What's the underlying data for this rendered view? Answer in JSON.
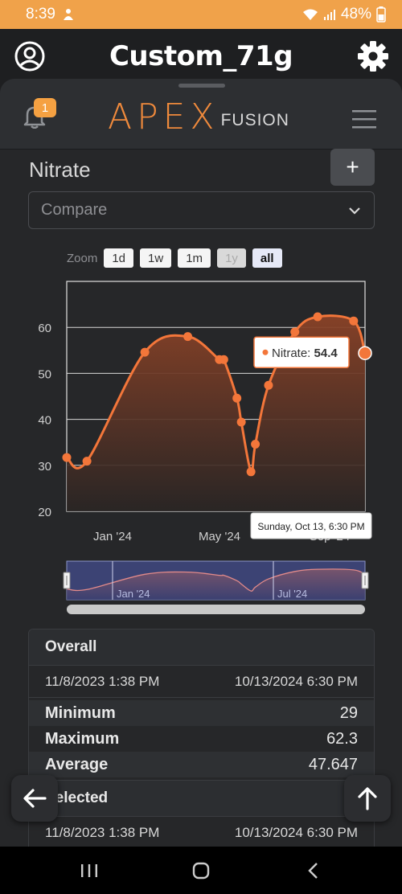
{
  "status_bar": {
    "time": "8:39",
    "battery": "48%"
  },
  "header": {
    "title": "Custom_71g"
  },
  "apex": {
    "notification_count": "1",
    "logo_main": "APEX",
    "logo_sub": "FUSION"
  },
  "parameter": {
    "title": "Nitrate",
    "add_label": "+"
  },
  "compare": {
    "placeholder": "Compare"
  },
  "zoom": {
    "label": "Zoom",
    "options": [
      {
        "label": "1d",
        "state": "normal"
      },
      {
        "label": "1w",
        "state": "normal"
      },
      {
        "label": "1m",
        "state": "normal"
      },
      {
        "label": "1y",
        "state": "disabled"
      },
      {
        "label": "all",
        "state": "active"
      }
    ]
  },
  "chart_data": {
    "type": "area",
    "series": [
      {
        "name": "Nitrate",
        "x": [
          "2023-11-08",
          "2023-12-01",
          "2024-02-05",
          "2024-03-25",
          "2024-04-30",
          "2024-05-05",
          "2024-05-20",
          "2024-05-25",
          "2024-06-05",
          "2024-06-10",
          "2024-06-25",
          "2024-07-25",
          "2024-08-20",
          "2024-09-30",
          "2024-10-13"
        ],
        "values": [
          31.7,
          30.9,
          54.6,
          58.0,
          53.0,
          53.0,
          44.6,
          39.4,
          28.6,
          34.6,
          47.4,
          59.0,
          62.3,
          61.4,
          54.4
        ],
        "color": "#f3763a"
      }
    ],
    "y_ticks": [
      "20",
      "30",
      "40",
      "50",
      "60"
    ],
    "ylim": [
      20,
      70
    ],
    "x_ticks": [
      "Jan '24",
      "May '24",
      "Sep '24"
    ],
    "grid": true,
    "tooltip": {
      "series_label": "Nitrate:",
      "value": "54.4",
      "date": "Sunday, Oct 13, 6:30 PM"
    },
    "navigator": {
      "labels": [
        "Jan '24",
        "Jul '24"
      ]
    }
  },
  "stats": {
    "overall": {
      "title": "Overall",
      "start": "11/8/2023 1:38 PM",
      "end": "10/13/2024 6:30 PM",
      "rows": [
        {
          "label": "Minimum",
          "value": "29"
        },
        {
          "label": "Maximum",
          "value": "62.3"
        },
        {
          "label": "Average",
          "value": "47.647"
        }
      ]
    },
    "selected": {
      "title": "Selected",
      "start": "11/8/2023 1:38 PM",
      "end": "10/13/2024 6:30 PM"
    }
  }
}
